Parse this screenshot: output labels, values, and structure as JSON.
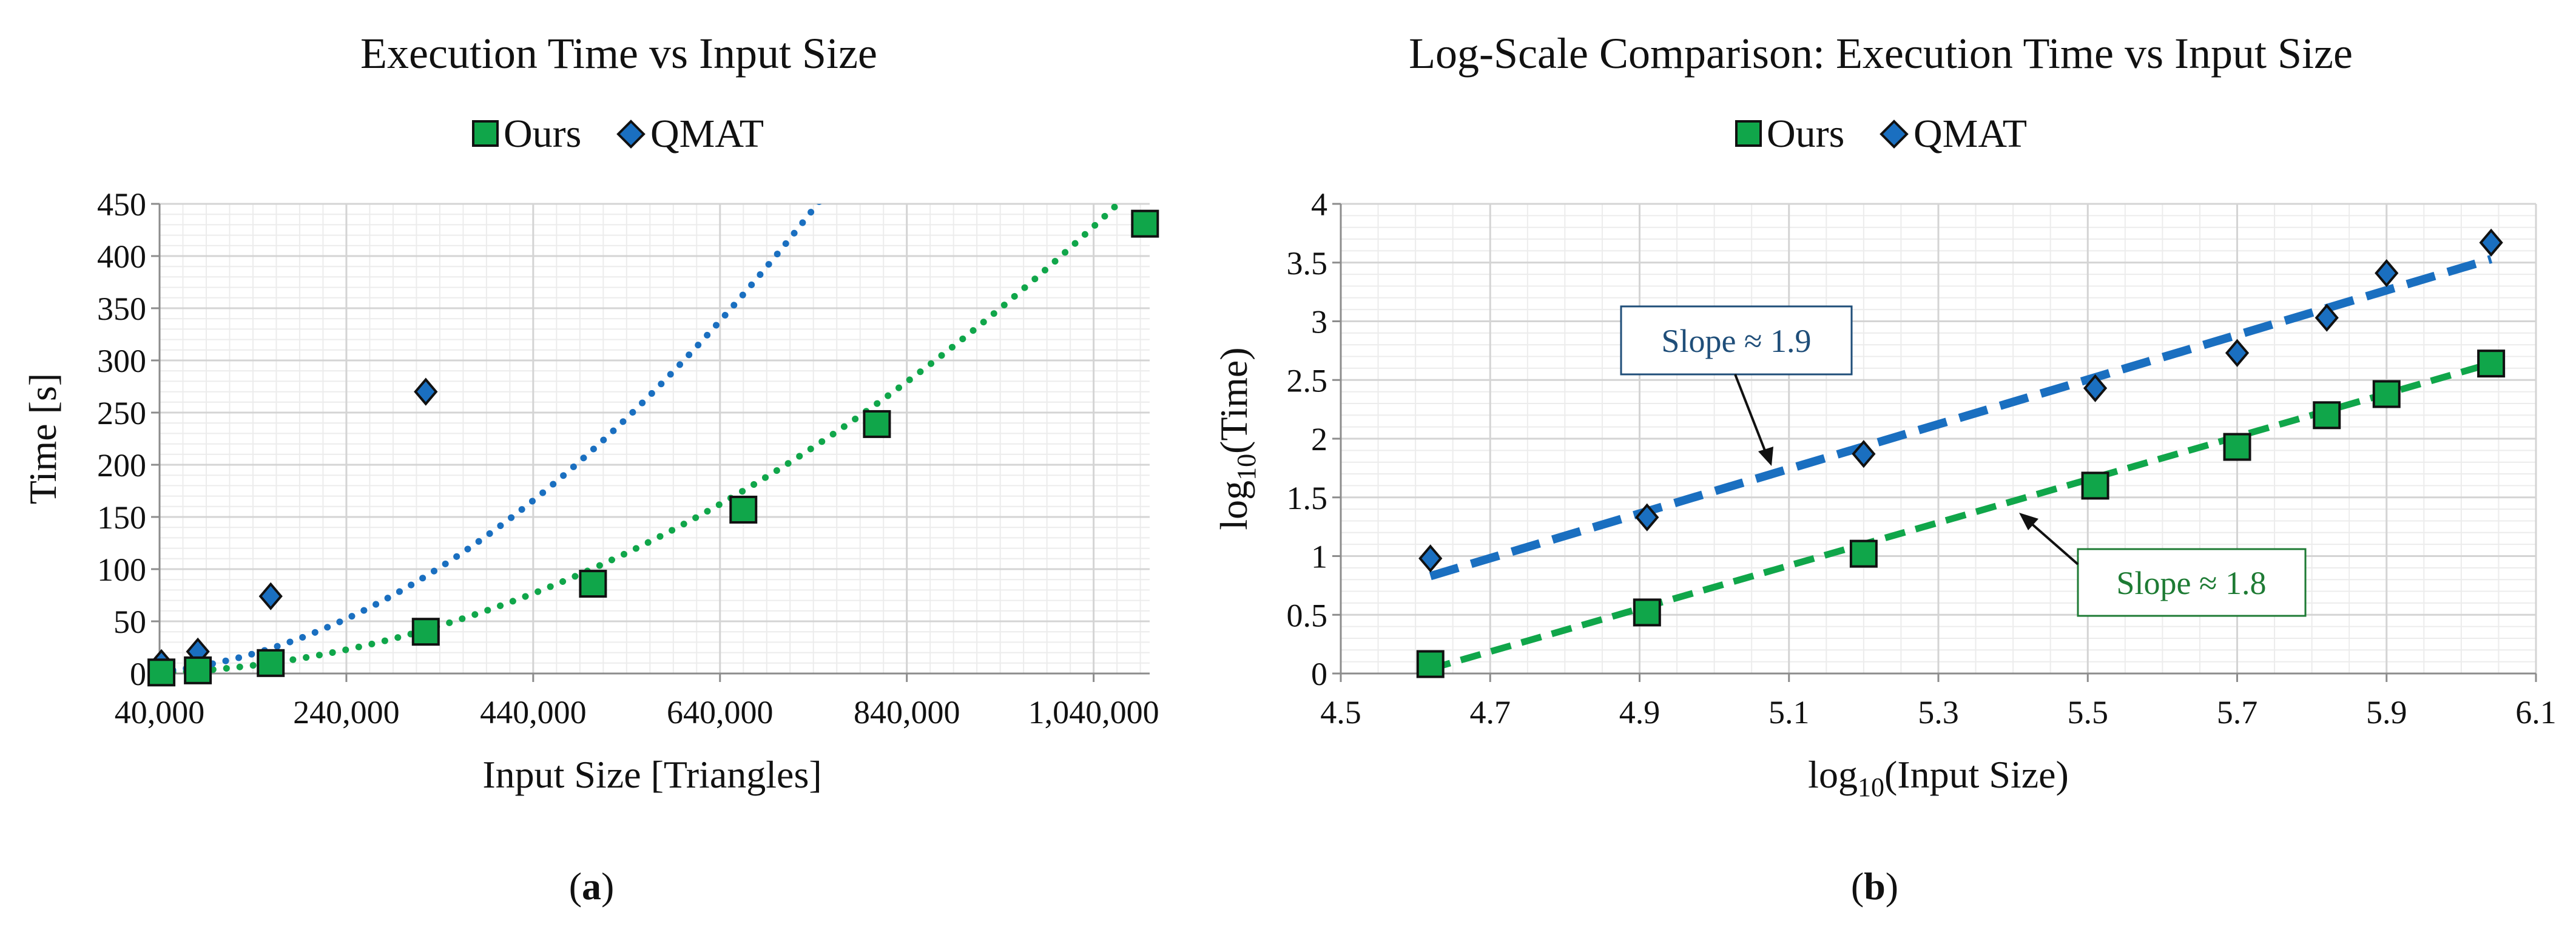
{
  "chart_data": [
    {
      "type": "scatter",
      "panel_label": "a",
      "title": "Execution Time vs Input Size",
      "xlabel": "Input Size [Triangles]",
      "ylabel": "Time [s]",
      "xlim": [
        40000,
        1100000
      ],
      "ylim": [
        0,
        450
      ],
      "x_ticks": [
        40000,
        240000,
        440000,
        640000,
        840000,
        1040000
      ],
      "x_tick_labels": [
        "40,000",
        "240,000",
        "440,000",
        "640,000",
        "840,000",
        "1,040,000"
      ],
      "y_ticks": [
        0,
        50,
        100,
        150,
        200,
        250,
        300,
        350,
        400,
        450
      ],
      "y_tick_labels": [
        "0",
        "50",
        "100",
        "150",
        "200",
        "250",
        "300",
        "350",
        "400",
        "450"
      ],
      "grid": true,
      "legend": [
        "Ours",
        "QMAT"
      ],
      "legend_position": "top-center",
      "series": [
        {
          "name": "Ours",
          "marker": "square",
          "color": "#10a64a",
          "x": [
            42000,
            81000,
            159000,
            325000,
            504000,
            665000,
            808000,
            1095000
          ],
          "y": [
            1,
            3,
            10,
            40,
            86,
            157,
            239,
            431
          ],
          "trendline": {
            "style": "dotted",
            "kind": "power",
            "coef": 3.96e-10,
            "exponent": 2.0
          }
        },
        {
          "name": "QMAT",
          "marker": "diamond",
          "color": "#1a6fc0",
          "x": [
            42000,
            81000,
            159000,
            325000
          ],
          "y": [
            10,
            21,
            74,
            270
          ],
          "trendline": {
            "style": "dotted",
            "kind": "power",
            "coef": 3.14e-09,
            "exponent": 1.9
          }
        }
      ]
    },
    {
      "type": "scatter",
      "panel_label": "b",
      "title": "Log-Scale Comparison: Execution Time vs Input Size",
      "xlabel": "log10(Input Size)",
      "ylabel": "log10(Time)",
      "xlim": [
        4.5,
        6.1
      ],
      "ylim": [
        0,
        4
      ],
      "x_ticks": [
        4.5,
        4.7,
        4.9,
        5.1,
        5.3,
        5.5,
        5.7,
        5.9,
        6.1
      ],
      "x_tick_labels": [
        "4.5",
        "4.7",
        "4.9",
        "5.1",
        "5.3",
        "5.5",
        "5.7",
        "5.9",
        "6.1"
      ],
      "y_ticks": [
        0,
        0.5,
        1,
        1.5,
        2,
        2.5,
        3,
        3.5,
        4
      ],
      "y_tick_labels": [
        "0",
        "0.5",
        "1",
        "1.5",
        "2",
        "2.5",
        "3",
        "3.5",
        "4"
      ],
      "grid": true,
      "legend": [
        "Ours",
        "QMAT"
      ],
      "legend_position": "top-center",
      "series": [
        {
          "name": "Ours",
          "marker": "square",
          "color": "#10a64a",
          "x": [
            4.62,
            4.91,
            5.2,
            5.51,
            5.7,
            5.82,
            5.9,
            6.04
          ],
          "y": [
            0.08,
            0.52,
            1.02,
            1.6,
            1.93,
            2.2,
            2.38,
            2.64
          ],
          "trendline": {
            "style": "dashed",
            "kind": "linear",
            "slope": 1.8,
            "x_range": [
              4.62,
              6.04
            ],
            "y_range": [
              0.04,
              2.64
            ]
          }
        },
        {
          "name": "QMAT",
          "marker": "diamond",
          "color": "#1a6fc0",
          "x": [
            4.62,
            4.91,
            5.2,
            5.51,
            5.7,
            5.82,
            5.9,
            6.04
          ],
          "y": [
            0.98,
            1.33,
            1.87,
            2.43,
            2.73,
            3.03,
            3.41,
            3.67
          ],
          "trendline": {
            "style": "dashed",
            "kind": "linear",
            "slope": 1.9,
            "x_range": [
              4.62,
              6.04
            ],
            "y_range": [
              0.83,
              3.53
            ]
          }
        }
      ],
      "annotations": [
        {
          "text": "Slope ≈ 1.9",
          "color": "#1f4e79",
          "arrow_to": [
            5.05,
            1.8
          ]
        },
        {
          "text": "Slope ≈ 1.8",
          "color": "#1e7b34",
          "arrow_to": [
            5.42,
            1.32
          ]
        }
      ]
    }
  ]
}
